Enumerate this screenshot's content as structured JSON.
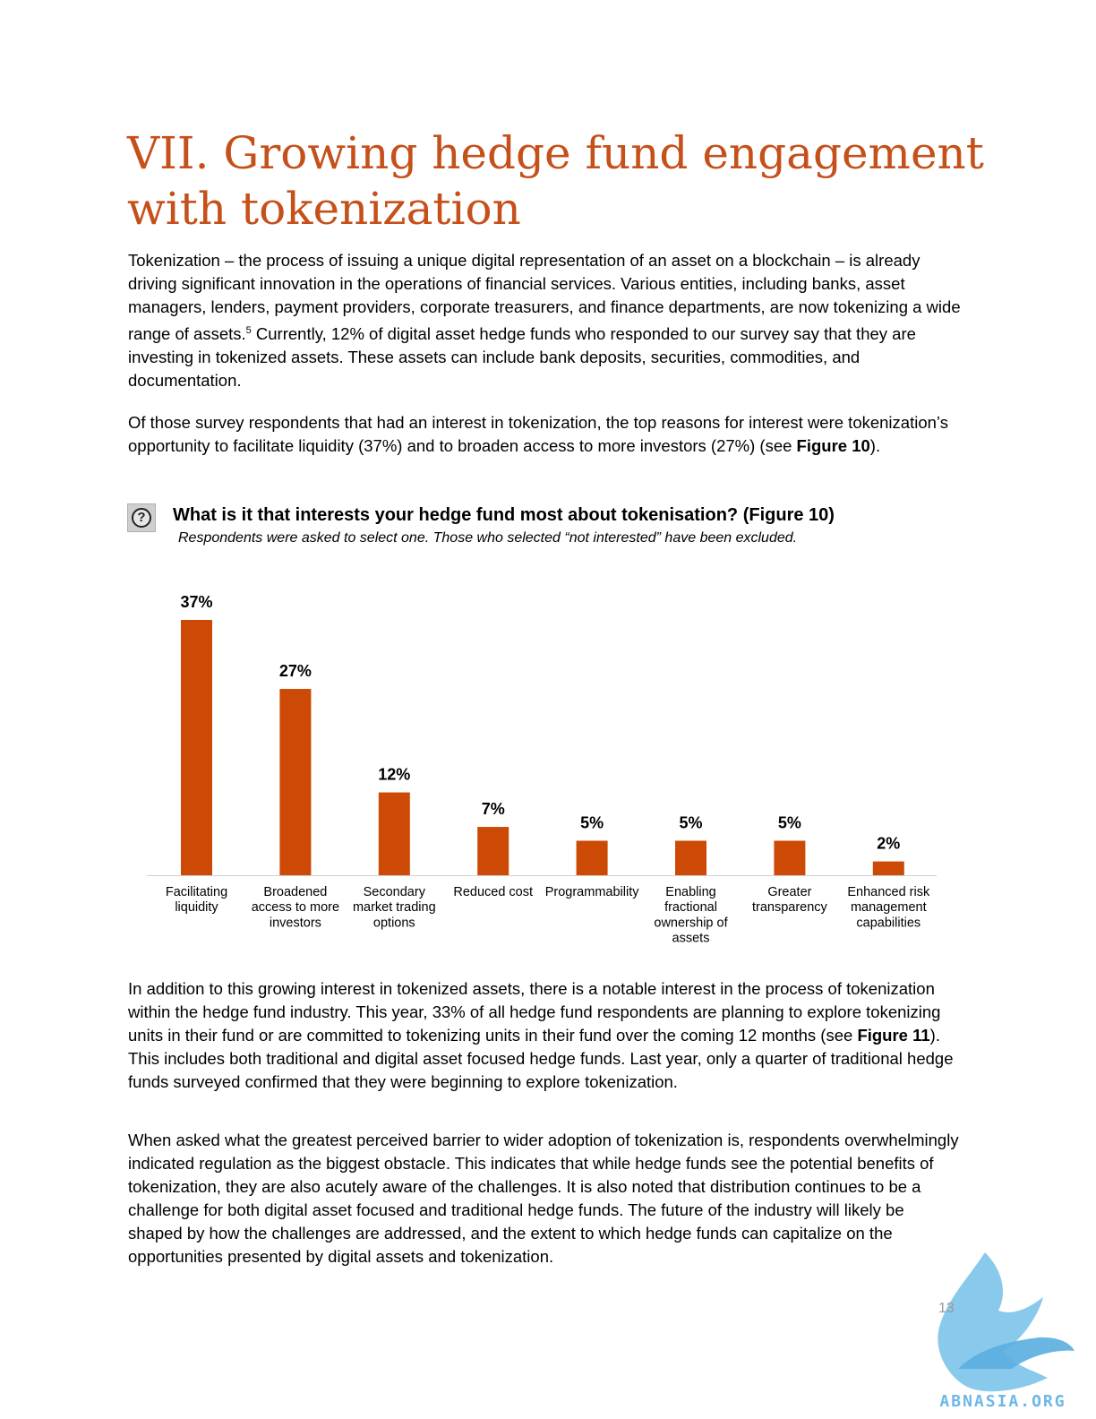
{
  "title": "VII. Growing hedge fund engagement with tokenization",
  "intro_paragraph_1": {
    "before_sup": "Tokenization – the process of issuing a unique digital representation of an asset on a blockchain – is already driving significant innovation in the operations of financial services. Various entities, including banks, asset managers, lenders, payment providers, corporate treasurers, and finance departments, are now tokenizing a wide range of assets.",
    "sup": "5",
    "after_sup": " Currently, 12% of digital asset hedge funds who responded to our survey say that they are investing in tokenized assets. These assets can include bank deposits, securities, commodities, and documentation."
  },
  "intro_paragraph_2": {
    "before_ref": "Of those survey respondents that had an interest in tokenization, the top reasons for interest were tokenization’s opportunity to facilitate liquidity (37%) and to broaden access to more investors (27%) (see ",
    "ref": "Figure 10",
    "after_ref": ")."
  },
  "figure": {
    "icon": "question-icon",
    "icon_glyph": "?",
    "title": "What is it that interests your hedge fund most about tokenisation? (Figure 10)",
    "subtitle": "Respondents were asked to select one. Those who selected “not interested” have been excluded."
  },
  "chart_data": {
    "type": "bar",
    "categories": [
      [
        "Facilitating",
        "liquidity"
      ],
      [
        "Broadened",
        "access to more",
        "investors"
      ],
      [
        "Secondary",
        "market trading",
        "options"
      ],
      [
        "Reduced cost"
      ],
      [
        "Programmability"
      ],
      [
        "Enabling",
        "fractional",
        "ownership of",
        "assets"
      ],
      [
        "Greater",
        "transparency"
      ],
      [
        "Enhanced risk",
        "management",
        "capabilities"
      ]
    ],
    "values": [
      37,
      27,
      12,
      7,
      5,
      5,
      5,
      2
    ],
    "value_labels": [
      "37%",
      "27%",
      "12%",
      "7%",
      "5%",
      "5%",
      "5%",
      "2%"
    ],
    "ylim": [
      0,
      37
    ],
    "grid": false,
    "legend": "none",
    "bar_color": "#cc4a06",
    "axis_color": "#d0d0d0"
  },
  "body_paragraph_3": {
    "before_ref": "In addition to this growing interest in tokenized assets, there is a notable interest in the process of tokenization within the hedge fund industry. This year, 33% of all hedge fund respondents are planning to explore tokenizing units in their fund or are committed to tokenizing units in their fund over the coming 12 months (see ",
    "ref": "Figure 11",
    "after_ref": "). This includes both traditional and digital asset focused hedge funds. Last year, only a quarter of traditional hedge funds surveyed confirmed that they were beginning to explore tokenization."
  },
  "body_paragraph_4": "When asked what the greatest perceived barrier to wider adoption of tokenization is, respondents overwhelmingly indicated regulation as the biggest obstacle. This indicates that while hedge funds see the potential benefits of tokenization, they are also acutely aware of the challenges. It is also noted that distribution continues to be a challenge for both digital asset focused and traditional hedge funds. The future of the industry will likely be shaped by how the challenges are addressed, and the extent to which hedge funds can capitalize on the opportunities presented by digital assets and tokenization.",
  "page_number": "13",
  "watermark": {
    "icon": "griffin-logo-icon",
    "text": "ABNASIA.ORG",
    "color": "#6bb8e6"
  }
}
